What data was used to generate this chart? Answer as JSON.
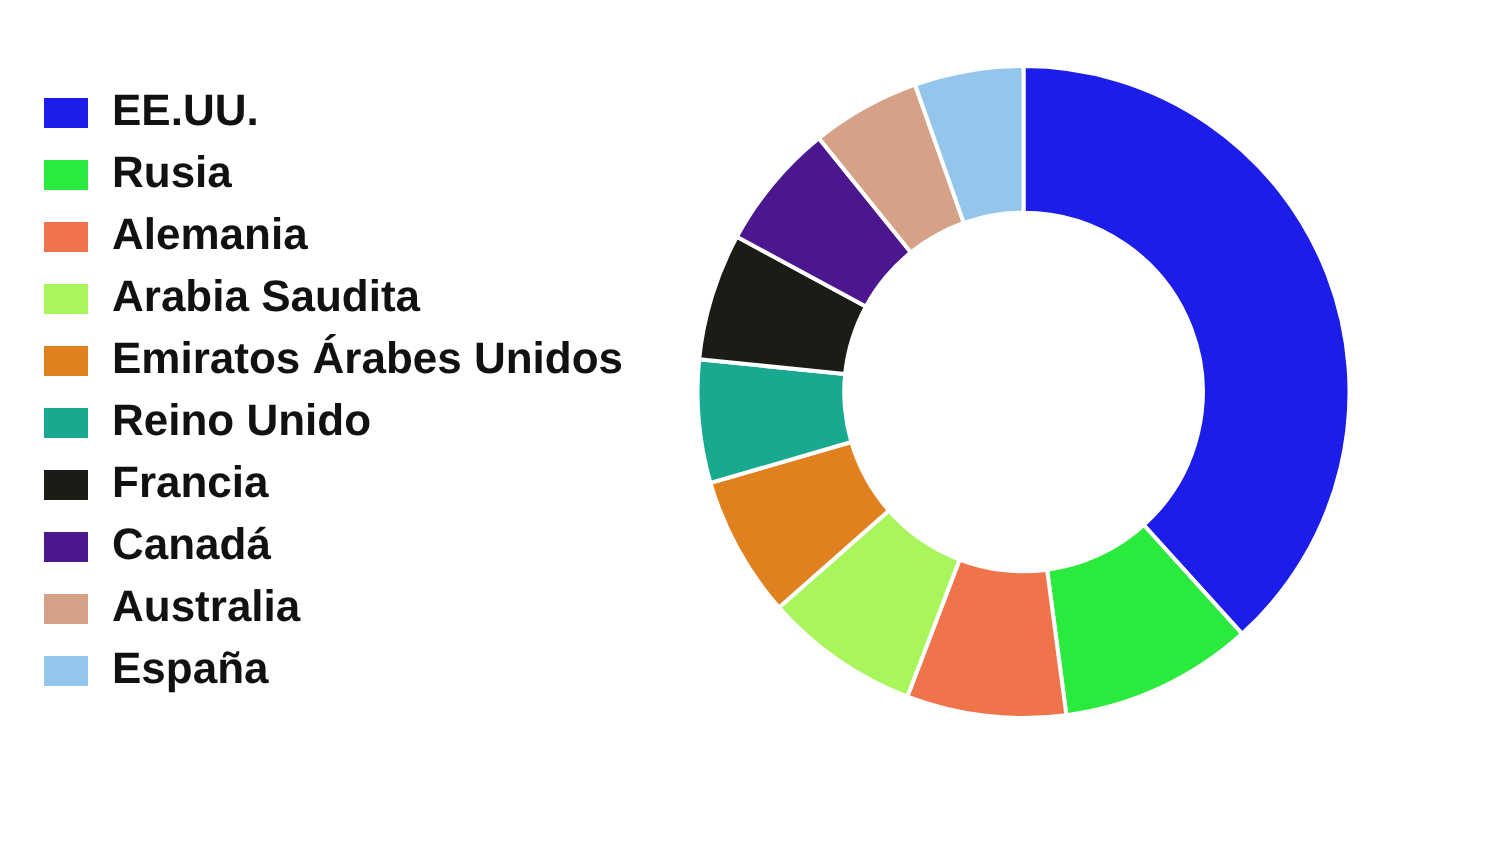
{
  "chart_data": {
    "type": "donut",
    "legend": "left",
    "categories": [
      "EE.UU.",
      "Rusia",
      "Alemania",
      "Arabia Saudita",
      "Emiratos Árabes Unidos",
      "Reino Unido",
      "Francia",
      "Canadá",
      "Australia",
      "España"
    ],
    "values": [
      38.3,
      9.6,
      7.9,
      7.7,
      7.0,
      6.1,
      6.3,
      6.3,
      5.4,
      5.4
    ],
    "colors": [
      "#1c1de8",
      "#2aea3e",
      "#f0744b",
      "#a9f55c",
      "#e0801e",
      "#19a98f",
      "#1c1c17",
      "#4c168f",
      "#d6a287",
      "#94c6ec"
    ]
  }
}
